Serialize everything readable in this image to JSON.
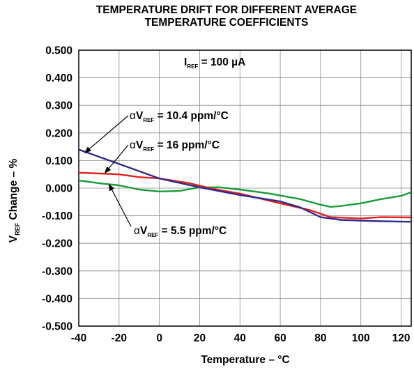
{
  "chart_data": {
    "type": "line",
    "title_line1": "TEMPERATURE DRIFT FOR DIFFERENT AVERAGE",
    "title_line2": "TEMPERATURE COEFFICIENTS",
    "xlabel": "Temperature – °C",
    "ylabel": {
      "prefix": "V",
      "subscript": "REF",
      "suffix": " Change – %"
    },
    "xlim": [
      -40,
      125
    ],
    "ylim": [
      -0.5,
      0.5
    ],
    "x_ticks": [
      -40,
      -20,
      0,
      20,
      40,
      60,
      80,
      100,
      120
    ],
    "x_tick_labels": [
      "-40",
      "-20",
      "0",
      "20",
      "40",
      "60",
      "80",
      "100",
      "120"
    ],
    "y_ticks": [
      0.5,
      0.4,
      0.3,
      0.2,
      0.1,
      0.0,
      -0.1,
      -0.2,
      -0.3,
      -0.4,
      -0.5
    ],
    "y_tick_labels": [
      "0.500",
      "0.400",
      "0.300",
      "0.200",
      "0.100",
      "0.000",
      "-0.100",
      "-0.200",
      "-0.300",
      "-0.400",
      "-0.500"
    ],
    "grid": true,
    "condition": {
      "prefix": "I",
      "subscript": "REF",
      "suffix": " = 100 µA"
    },
    "series": [
      {
        "name": "αVREF = 10.4 ppm/°C",
        "label": {
          "alpha": "α",
          "prefix": "V",
          "subscript": "REF",
          "suffix": " = 10.4 ppm/°C"
        },
        "color": "#2e2a8e",
        "points": [
          [
            -40,
            0.14
          ],
          [
            -20,
            0.088
          ],
          [
            0,
            0.035
          ],
          [
            20,
            0.003
          ],
          [
            40,
            -0.025
          ],
          [
            60,
            -0.048
          ],
          [
            70,
            -0.07
          ],
          [
            80,
            -0.105
          ],
          [
            90,
            -0.115
          ],
          [
            100,
            -0.118
          ],
          [
            110,
            -0.12
          ],
          [
            125,
            -0.122
          ]
        ]
      },
      {
        "name": "αVREF = 16 ppm/°C",
        "label": {
          "alpha": "α",
          "prefix": "V",
          "subscript": "REF",
          "suffix": " = 16 ppm/°C"
        },
        "color": "#e3201e",
        "points": [
          [
            -40,
            0.056
          ],
          [
            -20,
            0.05
          ],
          [
            -10,
            0.04
          ],
          [
            0,
            0.035
          ],
          [
            15,
            0.018
          ],
          [
            25,
            0.0
          ],
          [
            40,
            -0.02
          ],
          [
            60,
            -0.055
          ],
          [
            75,
            -0.08
          ],
          [
            85,
            -0.105
          ],
          [
            100,
            -0.11
          ],
          [
            110,
            -0.105
          ],
          [
            125,
            -0.106
          ]
        ]
      },
      {
        "name": "αVREF = 5.5 ppm/°C",
        "label": {
          "alpha": "α",
          "prefix": "V",
          "subscript": "REF",
          "suffix": " = 5.5 ppm/°C"
        },
        "color": "#1a9c3a",
        "points": [
          [
            -40,
            0.028
          ],
          [
            -30,
            0.018
          ],
          [
            -20,
            0.01
          ],
          [
            -10,
            -0.005
          ],
          [
            0,
            -0.012
          ],
          [
            10,
            -0.01
          ],
          [
            20,
            0.003
          ],
          [
            30,
            0.003
          ],
          [
            40,
            -0.005
          ],
          [
            55,
            -0.02
          ],
          [
            70,
            -0.04
          ],
          [
            80,
            -0.06
          ],
          [
            85,
            -0.068
          ],
          [
            90,
            -0.065
          ],
          [
            100,
            -0.055
          ],
          [
            110,
            -0.04
          ],
          [
            120,
            -0.028
          ],
          [
            125,
            -0.015
          ]
        ]
      }
    ]
  }
}
